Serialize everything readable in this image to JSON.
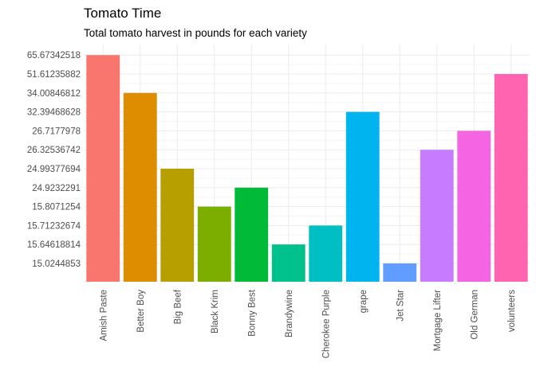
{
  "chart_data": {
    "type": "bar",
    "title": "Tomato Time",
    "subtitle": "Total tomato harvest in pounds for each variety",
    "xlabel": "",
    "ylabel": "",
    "y_axis": "categorical ranks (tick labels are the bar values, sorted ascending)",
    "grid": true,
    "legend": "none",
    "y_ticks": [
      "15.0244853",
      "15.64618814",
      "15.71232674",
      "15.8071254",
      "24.9232291",
      "24.99377694",
      "26.32536742",
      "26.7177978",
      "32.39468628",
      "34.00846812",
      "51.61235882",
      "65.67342518"
    ],
    "categories": [
      "Amish Paste",
      "Better Boy",
      "Big Beef",
      "Black Krim",
      "Bonny Best",
      "Brandywine",
      "Cherokee Purple",
      "grape",
      "Jet Star",
      "Mortgage Lifter",
      "Old German",
      "volunteers"
    ],
    "values": [
      "65.67342518",
      "34.00846812",
      "24.99377694",
      "15.8071254",
      "24.9232291",
      "15.64618814",
      "15.71232674",
      "32.39468628",
      "15.0244853",
      "26.32536742",
      "26.7177978",
      "51.61235882"
    ],
    "colors": [
      "#F8766D",
      "#DE8C00",
      "#B79F00",
      "#7CAE00",
      "#00BA38",
      "#00C08B",
      "#00BFC4",
      "#00B4F0",
      "#619CFF",
      "#C77CFF",
      "#F564E3",
      "#FF64B0"
    ]
  }
}
